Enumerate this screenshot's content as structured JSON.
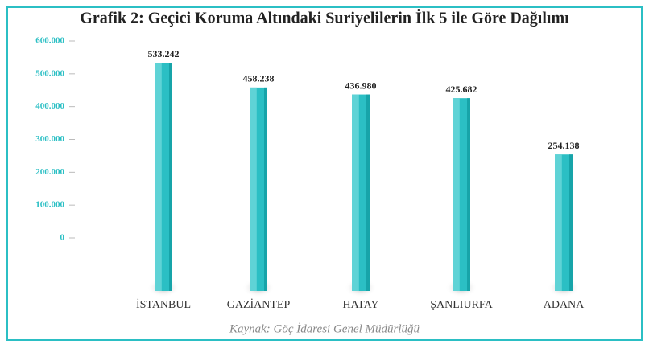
{
  "chart_data": {
    "type": "bar",
    "title": "Grafik 2: Geçici Koruma Altındaki Suriyelilerin İlk 5 ile Göre Dağılımı",
    "source": "Kaynak: Göç İdaresi Genel Müdürlüğü",
    "categories": [
      "İSTANBUL",
      "GAZİANTEP",
      "HATAY",
      "ŞANLIURFA",
      "ADANA"
    ],
    "values": [
      533242,
      458238,
      436980,
      425682,
      254138
    ],
    "value_labels": [
      "533.242",
      "458.238",
      "436.980",
      "425.682",
      "254.138"
    ],
    "color": "#2bbfc4",
    "ylim": [
      0,
      600000
    ],
    "yticks": [
      {
        "value": 0,
        "label": "0"
      },
      {
        "value": 100000,
        "label": "100.000"
      },
      {
        "value": 200000,
        "label": "200.000"
      },
      {
        "value": 300000,
        "label": "300.000"
      },
      {
        "value": 400000,
        "label": "400.000"
      },
      {
        "value": 500000,
        "label": "500.000"
      },
      {
        "value": 600000,
        "label": "600.000"
      }
    ]
  }
}
